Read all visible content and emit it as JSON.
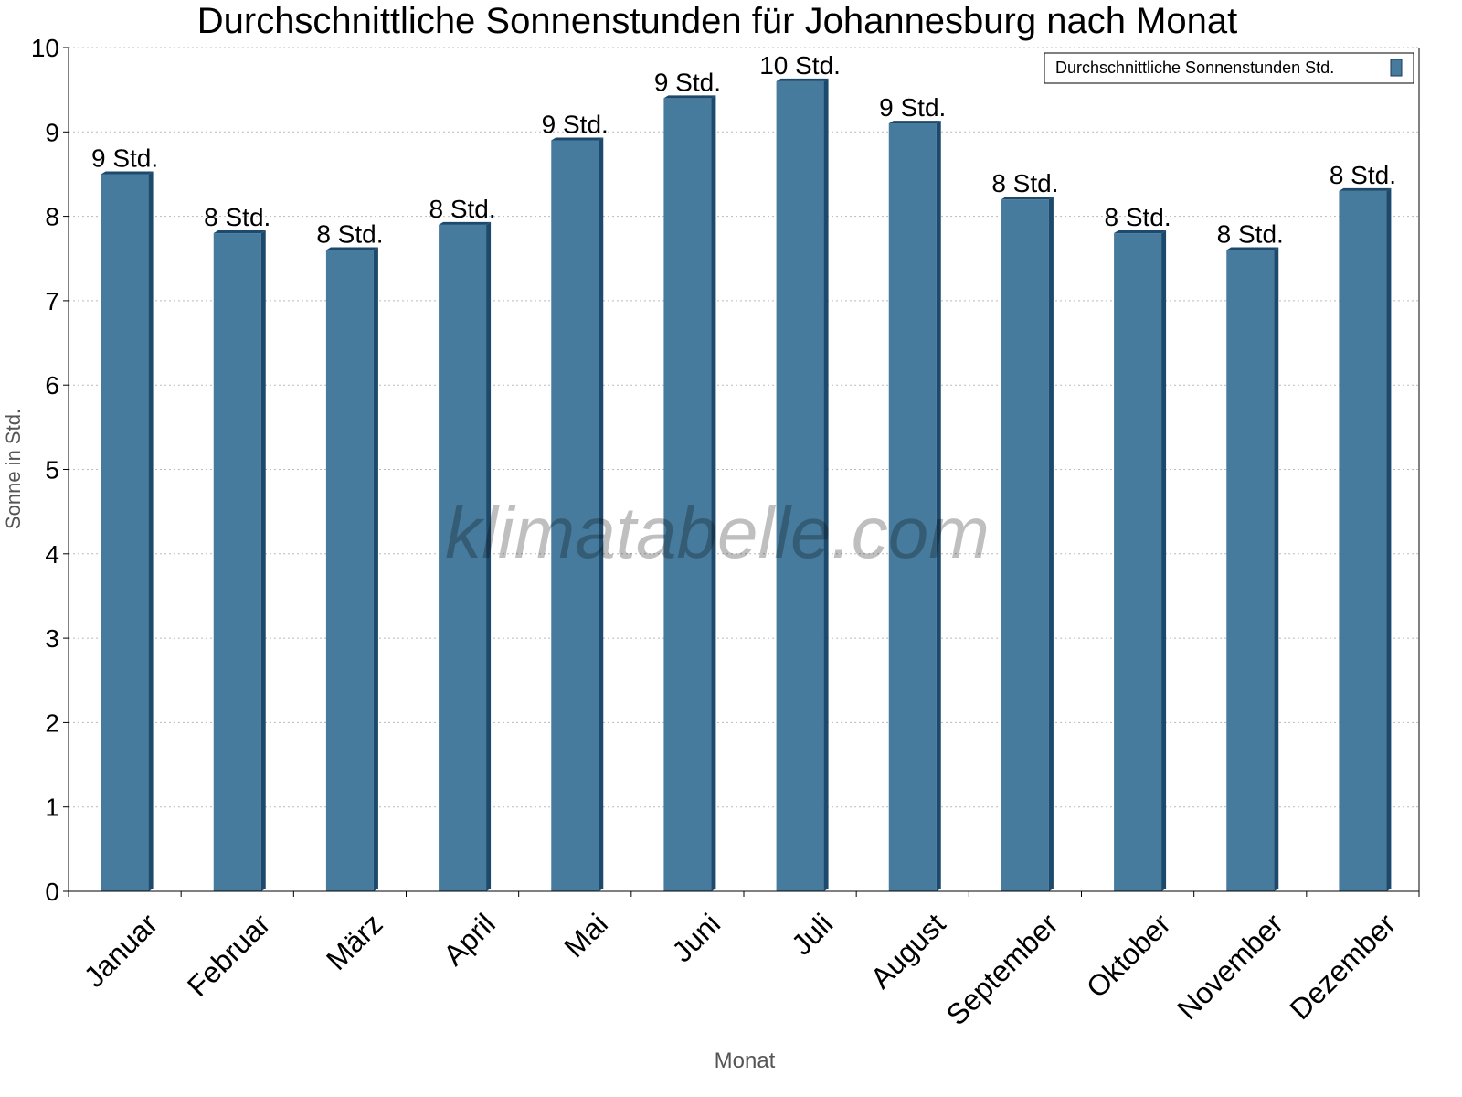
{
  "chart_data": {
    "type": "bar",
    "title": "Durchschnittliche Sonnenstunden für Johannesburg nach Monat",
    "xlabel": "Monat",
    "ylabel": "Sonne in Std.",
    "ylim": [
      0,
      10
    ],
    "yticks": [
      "0",
      "1",
      "2",
      "3",
      "4",
      "5",
      "6",
      "7",
      "8",
      "9",
      "10"
    ],
    "grid": true,
    "legend_position": "top-right",
    "categories": [
      "Januar",
      "Februar",
      "März",
      "April",
      "Mai",
      "Juni",
      "Juli",
      "August",
      "September",
      "Oktober",
      "November",
      "Dezember"
    ],
    "series": [
      {
        "name": "Durchschnittliche Sonnenstunden Std.",
        "color": "#467b9d",
        "values": [
          8.5,
          7.8,
          7.6,
          7.9,
          8.9,
          9.4,
          9.6,
          9.1,
          8.2,
          7.8,
          7.6,
          8.3
        ],
        "data_labels": [
          "9 Std.",
          "8 Std.",
          "8 Std.",
          "8 Std.",
          "9 Std.",
          "9 Std.",
          "10 Std.",
          "9 Std.",
          "8 Std.",
          "8 Std.",
          "8 Std.",
          "8 Std."
        ]
      }
    ],
    "watermark": "klimatabelle.com"
  }
}
